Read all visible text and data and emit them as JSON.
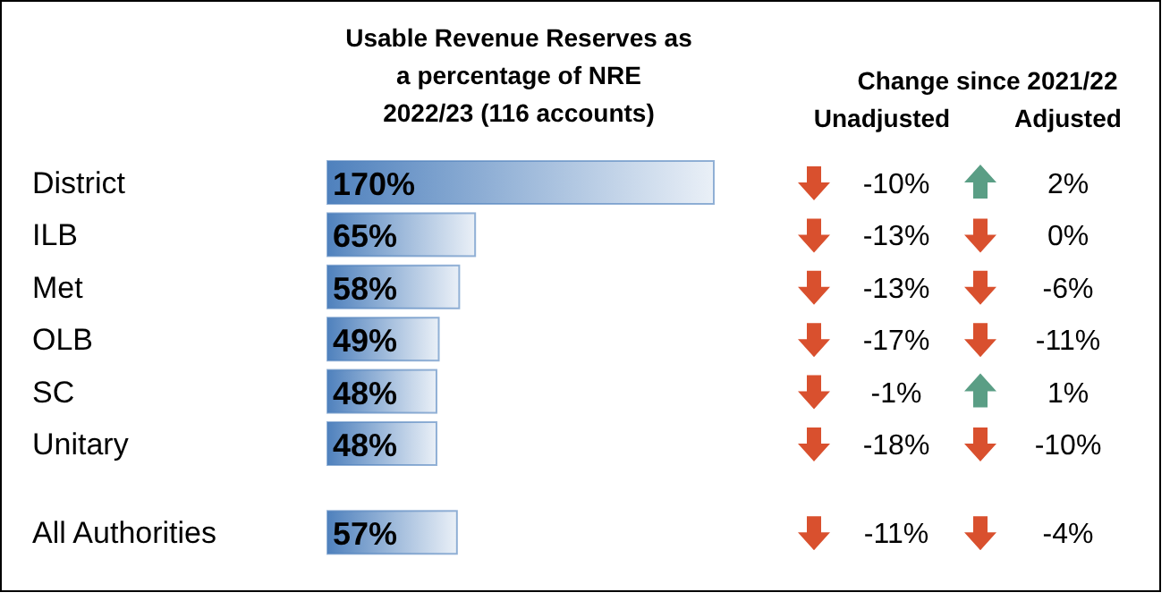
{
  "chart_data": [
    {
      "type": "bar",
      "orientation": "horizontal",
      "title": "Usable Revenue Reserves as\na percentage of NRE\n2022/23 (116 accounts)",
      "categories": [
        "District",
        "ILB",
        "Met",
        "OLB",
        "SC",
        "Unitary",
        null,
        "All Authorities"
      ],
      "values": [
        170,
        65,
        58,
        49,
        48,
        48,
        null,
        57
      ],
      "value_labels": [
        "170%",
        "65%",
        "58%",
        "49%",
        "48%",
        "48%",
        null,
        "57%"
      ],
      "color": "#4f81bd"
    },
    {
      "type": "other",
      "title": "Change since 2021/22",
      "subtitle": "Unadjusted",
      "values": [
        -10,
        -13,
        -13,
        -17,
        -1,
        -18,
        null,
        -11
      ],
      "value_labels": [
        "-10%",
        "-13%",
        "-13%",
        "-17%",
        "-1%",
        "-18%",
        null,
        "-11%"
      ]
    },
    {
      "type": "other",
      "subtitle": "Adjusted",
      "values": [
        2,
        0,
        -6,
        -11,
        1,
        -10,
        null,
        -4
      ],
      "value_labels": [
        "2%",
        "0%",
        "-6%",
        "-11%",
        "1%",
        "-10%",
        null,
        "-4%"
      ]
    }
  ]
}
